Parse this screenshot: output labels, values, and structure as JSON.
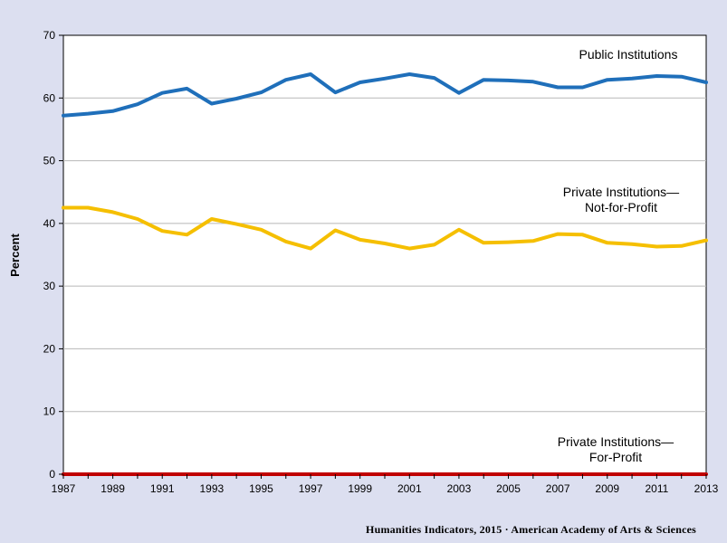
{
  "chart_data": {
    "type": "line",
    "x": [
      1987,
      1988,
      1989,
      1990,
      1991,
      1992,
      1993,
      1994,
      1995,
      1996,
      1997,
      1998,
      1999,
      2000,
      2001,
      2002,
      2003,
      2004,
      2005,
      2006,
      2007,
      2008,
      2009,
      2010,
      2011,
      2012,
      2013
    ],
    "x_tick_labels": [
      "1987",
      "1989",
      "1991",
      "1993",
      "1995",
      "1997",
      "1999",
      "2001",
      "2003",
      "2005",
      "2007",
      "2009",
      "2011",
      "2013"
    ],
    "y_tick_labels": [
      "0",
      "10",
      "20",
      "30",
      "40",
      "50",
      "60",
      "70"
    ],
    "ylabel": "Percent",
    "xlabel": "",
    "ylim": [
      0,
      70
    ],
    "xlim": [
      1987,
      2013
    ],
    "grid": "horizontal",
    "series": [
      {
        "name": "Public Institutions",
        "label_lines": [
          "Public Institutions"
        ],
        "color": "#1f6fba",
        "values": [
          57.2,
          57.5,
          57.9,
          59.0,
          60.8,
          61.5,
          59.1,
          59.9,
          60.9,
          62.9,
          63.8,
          60.9,
          62.5,
          63.1,
          63.8,
          63.2,
          60.8,
          62.9,
          62.8,
          62.6,
          61.7,
          61.7,
          62.9,
          63.1,
          63.5,
          63.4,
          62.5
        ]
      },
      {
        "name": "Private Institutions—Not-for-Profit",
        "label_lines": [
          "Private Institutions—",
          "Not-for-Profit"
        ],
        "color": "#f5bf00",
        "values": [
          42.5,
          42.5,
          41.8,
          40.7,
          38.8,
          38.2,
          40.7,
          39.9,
          39.0,
          37.1,
          36.0,
          38.9,
          37.4,
          36.8,
          36.0,
          36.6,
          39.0,
          36.9,
          37.0,
          37.2,
          38.3,
          38.2,
          36.9,
          36.7,
          36.3,
          36.4,
          37.3
        ]
      },
      {
        "name": "Private Institutions—For-Profit",
        "label_lines": [
          "Private Institutions—",
          "For-Profit"
        ],
        "color": "#c00000",
        "values": [
          0,
          0,
          0,
          0,
          0,
          0,
          0,
          0,
          0,
          0,
          0,
          0,
          0,
          0,
          0,
          0,
          0,
          0,
          0,
          0,
          0,
          0,
          0,
          0,
          0,
          0,
          0
        ]
      }
    ]
  },
  "footer": {
    "credit": "Humanities Indicators, 2015 · American Academy of Arts & Sciences"
  }
}
